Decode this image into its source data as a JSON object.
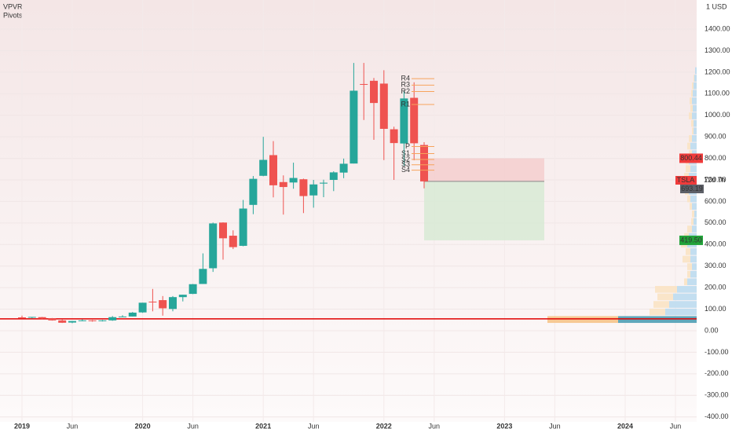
{
  "chart_data": {
    "type": "candlestick",
    "indicators": [
      "VPVR",
      "Pivots"
    ],
    "currency": "1 USD",
    "categories": [
      "2019",
      null,
      null,
      null,
      null,
      "Jun",
      null,
      null,
      null,
      null,
      null,
      null,
      "2020",
      null,
      null,
      null,
      null,
      "Jun",
      null,
      null,
      null,
      null,
      null,
      null,
      "2021",
      null,
      null,
      null,
      null,
      "Jun",
      null,
      null,
      null,
      null,
      null,
      null,
      "2022",
      null,
      null,
      null,
      null,
      "Jun",
      null,
      null,
      null,
      null,
      null,
      null,
      "2023",
      null,
      null,
      null,
      null,
      "Jun",
      null,
      null,
      null,
      null,
      null,
      null,
      "2024",
      null,
      null,
      null,
      null,
      "Jun",
      null,
      null
    ],
    "open": [
      62,
      61,
      63,
      57,
      48,
      38,
      46,
      48,
      45,
      48,
      63,
      66,
      85,
      135,
      142,
      101,
      156,
      171,
      217,
      290,
      502,
      441,
      394,
      584,
      719,
      815,
      690,
      688,
      703,
      628,
      683,
      700,
      734,
      776,
      1145,
      1160,
      1147,
      935,
      869,
      1081,
      862,
      null,
      null,
      null,
      null,
      null,
      null,
      null,
      null,
      null,
      null,
      null,
      null,
      null,
      null,
      null,
      null,
      null,
      null,
      null,
      null,
      null,
      null,
      null,
      null,
      null,
      null,
      null
    ],
    "high": [
      70,
      64,
      64,
      59,
      52,
      45,
      53,
      50,
      50,
      68,
      72,
      87,
      130,
      194,
      161,
      161,
      167,
      217,
      359,
      502,
      503,
      466,
      607,
      718,
      900,
      880,
      721,
      780,
      706,
      700,
      701,
      740,
      799,
      1243,
      1243,
      1173,
      1209,
      947,
      1115,
      1153,
      875,
      null,
      null,
      null,
      null,
      null,
      null,
      null,
      null,
      null,
      null,
      null,
      null,
      null,
      null,
      null,
      null,
      null,
      null,
      null,
      null,
      null,
      null,
      null,
      null,
      null,
      null,
      null
    ],
    "low": [
      57,
      57,
      54,
      47,
      36,
      35,
      44,
      42,
      43,
      46,
      63,
      66,
      83,
      90,
      70,
      90,
      136,
      170,
      217,
      273,
      330,
      379,
      392,
      541,
      717,
      619,
      539,
      659,
      546,
      571,
      620,
      648,
      708,
      776,
      978,
      886,
      792,
      700,
      766,
      791,
      661,
      null,
      null,
      null,
      null,
      null,
      null,
      null,
      null,
      null,
      null,
      null,
      null,
      null,
      null,
      null,
      null,
      null,
      null,
      null,
      null,
      null,
      null,
      null,
      null,
      null,
      null,
      null
    ],
    "close": [
      61,
      64,
      56,
      48,
      37,
      45,
      48,
      45,
      48,
      63,
      66,
      84,
      130,
      134,
      104,
      156,
      167,
      216,
      287,
      498,
      429,
      388,
      567,
      705,
      793,
      675,
      667,
      709,
      625,
      679,
      687,
      735,
      775,
      1114,
      1144,
      1057,
      937,
      871,
      1078,
      870,
      693.19,
      null,
      null,
      null,
      null,
      null,
      null,
      null,
      null,
      null,
      null,
      null,
      null,
      null,
      null,
      null,
      null,
      null,
      null,
      null,
      null,
      null,
      null,
      null,
      null,
      null,
      null,
      null
    ],
    "up_color": "#26a69a",
    "down_color": "#ef5350",
    "ylim": [
      -423,
      1535
    ],
    "yticks": [
      {
        "value": -400,
        "label": "-400.00"
      },
      {
        "value": -300,
        "label": "-300.00"
      },
      {
        "value": -200,
        "label": "-200.00"
      },
      {
        "value": -100,
        "label": "-100.00"
      },
      {
        "value": 0,
        "label": "0.00"
      },
      {
        "value": 100,
        "label": "100.00"
      },
      {
        "value": 200,
        "label": "200.00"
      },
      {
        "value": 300,
        "label": "300.00"
      },
      {
        "value": 400,
        "label": "400.00"
      },
      {
        "value": 500,
        "label": "500.00"
      },
      {
        "value": 600,
        "label": "600.00"
      },
      {
        "value": 700,
        "label": "700.00"
      },
      {
        "value": 800,
        "label": "800.00"
      },
      {
        "value": 900,
        "label": "900.00"
      },
      {
        "value": 1000,
        "label": "1000.00"
      },
      {
        "value": 1100,
        "label": "1100.00"
      },
      {
        "value": 1200,
        "label": "1200.00"
      },
      {
        "value": 1300,
        "label": "1300.00"
      },
      {
        "value": 1400,
        "label": "1400.00"
      }
    ],
    "hline": 55,
    "symbol": "TSLA",
    "countdown": "12d 7h",
    "position": {
      "stop": 800.44,
      "target": {
        "value": 419.5,
        "label": "419.50"
      }
    },
    "pivots": [
      {
        "label": "R4",
        "value": 1170
      },
      {
        "label": "R3",
        "value": 1140
      },
      {
        "label": "R2",
        "value": 1110
      },
      {
        "label": "R1",
        "value": 1050
      },
      {
        "label": "P",
        "value": 855
      },
      {
        "label": "S1",
        "value": 822
      },
      {
        "label": "S2",
        "value": 795
      },
      {
        "label": "S3",
        "value": 770
      },
      {
        "label": "S4",
        "value": 745
      }
    ],
    "volume_profile": {
      "levels": [
        52,
        87,
        122,
        157,
        192,
        227,
        262,
        297,
        332,
        367,
        402,
        437,
        472,
        507,
        542,
        577,
        612,
        647,
        682,
        717,
        752,
        787,
        822,
        857,
        892,
        927,
        962,
        997,
        1032,
        1067,
        1102,
        1137,
        1172,
        1207
      ],
      "up": [
        100,
        40,
        35,
        30,
        25,
        12,
        8,
        6,
        8,
        8,
        12,
        10,
        6,
        4,
        3,
        6,
        8,
        10,
        12,
        10,
        8,
        10,
        6,
        8,
        6,
        4,
        4,
        6,
        5,
        6,
        5,
        4,
        3,
        2
      ],
      "down": [
        90,
        20,
        20,
        20,
        28,
        4,
        4,
        6,
        10,
        6,
        8,
        6,
        6,
        3,
        3,
        3,
        4,
        5,
        8,
        6,
        6,
        4,
        4,
        4,
        4,
        2,
        3,
        4,
        3,
        3,
        2,
        2,
        1,
        0
      ]
    }
  }
}
